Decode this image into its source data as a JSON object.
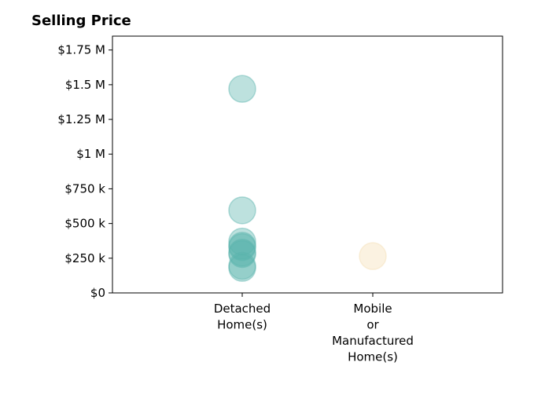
{
  "chart_data": {
    "type": "scatter",
    "title": "Selling Price",
    "xlabel": "",
    "ylabel": "",
    "categories": [
      [
        "Detached",
        "Home(s)"
      ],
      [
        "Mobile",
        "or",
        "Manufactured",
        "Home(s)"
      ]
    ],
    "y_ticks": [
      {
        "value": 0,
        "label": "$0"
      },
      {
        "value": 250000,
        "label": "$250 k"
      },
      {
        "value": 500000,
        "label": "$500 k"
      },
      {
        "value": 750000,
        "label": "$750 k"
      },
      {
        "value": 1000000,
        "label": "$1 M"
      },
      {
        "value": 1250000,
        "label": "$1.25 M"
      },
      {
        "value": 1500000,
        "label": "$1.5 M"
      },
      {
        "value": 1750000,
        "label": "$1.75 M"
      }
    ],
    "ylim": [
      0,
      1850000
    ],
    "grid": false,
    "series": [
      {
        "category_index": 0,
        "color": "#5ab4ac",
        "values": [
          1470000,
          595000,
          370000,
          340000,
          330000,
          290000,
          280000,
          195000,
          180000
        ]
      },
      {
        "category_index": 1,
        "color": "#f5deb3",
        "values": [
          265000
        ]
      }
    ]
  }
}
